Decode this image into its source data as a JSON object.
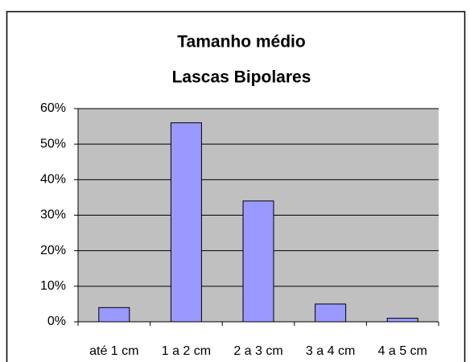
{
  "chart_data": {
    "type": "bar",
    "title": [
      "Tamanho médio",
      "Lascas Bipolares"
    ],
    "categories": [
      "até 1 cm",
      "1 a 2 cm",
      "2 a 3 cm",
      "3 a 4 cm",
      "4 a 5 cm"
    ],
    "values": [
      4,
      56,
      34,
      5,
      1
    ],
    "color": "#9999ff",
    "ylim": [
      0,
      60
    ],
    "yticks": [
      {
        "value": 0,
        "label": "0%"
      },
      {
        "value": 10,
        "label": "10%"
      },
      {
        "value": 20,
        "label": "20%"
      },
      {
        "value": 30,
        "label": "30%"
      },
      {
        "value": 40,
        "label": "40%"
      },
      {
        "value": 50,
        "label": "50%"
      },
      {
        "value": 60,
        "label": "60%"
      }
    ],
    "grid": true
  }
}
